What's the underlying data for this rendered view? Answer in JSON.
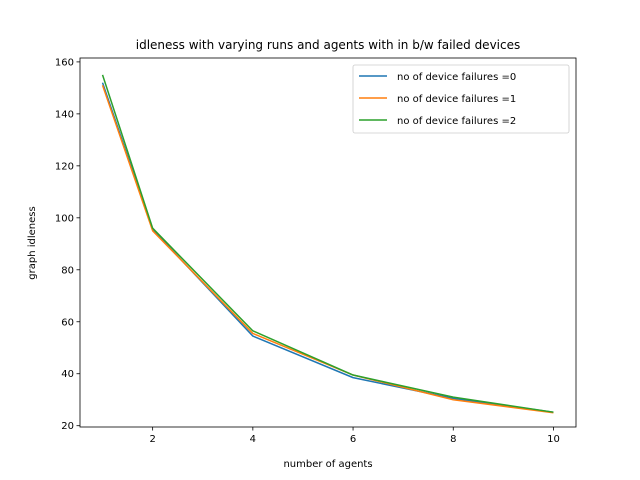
{
  "chart_data": {
    "type": "line",
    "title": "idleness with varying runs and agents with in b/w failed devices",
    "xlabel": "number of agents",
    "ylabel": "graph idleness",
    "xlim": [
      0.55,
      10.45
    ],
    "ylim": [
      19.5,
      161.5
    ],
    "xticks": [
      2,
      4,
      6,
      8,
      10
    ],
    "yticks": [
      20,
      40,
      60,
      80,
      100,
      120,
      140,
      160
    ],
    "grid": false,
    "legend": "top-right",
    "x": [
      1,
      2,
      4,
      6,
      8,
      10
    ],
    "series": [
      {
        "name": "no of device failures =0",
        "color": "#1f77b4",
        "values": [
          152,
          95.5,
          54.5,
          38.5,
          30.5,
          25.2
        ]
      },
      {
        "name": "no of device failures =1",
        "color": "#ff7f0e",
        "values": [
          151,
          95,
          55.5,
          39.5,
          30,
          25
        ]
      },
      {
        "name": "no of device failures =2",
        "color": "#2ca02c",
        "values": [
          155,
          96,
          56.5,
          39.5,
          31,
          25.2
        ]
      }
    ]
  }
}
